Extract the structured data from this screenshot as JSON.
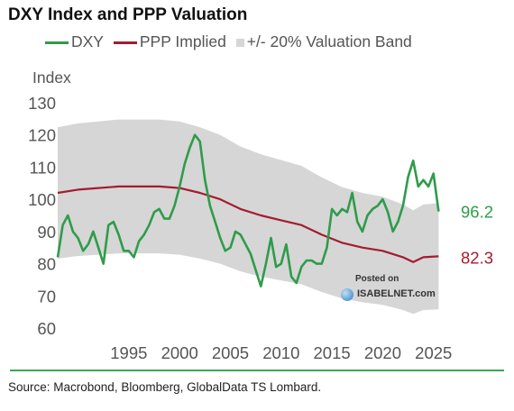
{
  "header": {
    "title": "DXY Index and PPP Valuation",
    "legend": {
      "dxy_label": "DXY",
      "ppp_label": "PPP Implied",
      "band_label": "+/- 20% Valuation Band"
    },
    "y_axis_label": "Index"
  },
  "watermark": {
    "posted_label": "Posted on",
    "site_label": "ISABELNET.com"
  },
  "footer": {
    "source": "Source: Macrobond, Bloomberg, GlobalData TS Lombard."
  },
  "chart_data": {
    "type": "line",
    "title": "DXY Index and PPP Valuation",
    "ylabel": "Index",
    "xlim": [
      1988,
      2026
    ],
    "ylim": [
      60,
      130
    ],
    "y_ticks": [
      "60",
      "70",
      "80",
      "90",
      "100",
      "110",
      "120",
      "130"
    ],
    "x_ticks": [
      "1995",
      "2000",
      "2005",
      "2010",
      "2015",
      "2020",
      "2025"
    ],
    "colors": {
      "dxy": "#2e9c4a",
      "ppp": "#a31c2f",
      "band": "#d6d6d6"
    },
    "series": [
      {
        "name": "DXY",
        "x": [
          1988.0,
          1988.5,
          1989.0,
          1989.5,
          1990.0,
          1990.5,
          1991.0,
          1991.5,
          1992.0,
          1992.5,
          1993.0,
          1993.5,
          1994.0,
          1994.5,
          1995.0,
          1995.5,
          1996.0,
          1996.5,
          1997.0,
          1997.5,
          1998.0,
          1998.5,
          1999.0,
          1999.5,
          2000.0,
          2000.5,
          2001.0,
          2001.5,
          2002.0,
          2002.5,
          2003.0,
          2003.5,
          2004.0,
          2004.5,
          2005.0,
          2005.5,
          2006.0,
          2006.5,
          2007.0,
          2007.5,
          2008.0,
          2008.5,
          2009.0,
          2009.5,
          2010.0,
          2010.5,
          2011.0,
          2011.5,
          2012.0,
          2012.5,
          2013.0,
          2013.5,
          2014.0,
          2014.5,
          2015.0,
          2015.5,
          2016.0,
          2016.5,
          2017.0,
          2017.5,
          2018.0,
          2018.5,
          2019.0,
          2019.5,
          2020.0,
          2020.5,
          2021.0,
          2021.5,
          2022.0,
          2022.5,
          2023.0,
          2023.5,
          2024.0,
          2024.5,
          2025.0,
          2025.5
        ],
        "values": [
          82,
          92,
          95,
          90,
          88,
          84,
          86,
          90,
          85,
          80,
          92,
          93,
          89,
          84,
          84,
          82,
          87,
          89,
          92,
          96,
          97,
          94,
          94,
          98,
          104,
          111,
          116,
          120,
          118,
          106,
          98,
          93,
          88,
          84,
          85,
          90,
          89,
          86,
          83,
          78,
          73,
          80,
          88,
          79,
          80,
          86,
          76,
          74,
          79,
          81,
          81,
          80,
          80,
          85,
          97,
          95,
          97,
          96,
          102,
          93,
          90,
          95,
          97,
          98,
          100,
          96,
          90,
          93,
          98,
          107,
          112,
          104,
          106,
          104,
          108,
          96.2
        ]
      },
      {
        "name": "PPP Implied",
        "x": [
          1988,
          1990,
          1992,
          1994,
          1996,
          1998,
          2000,
          2002,
          2004,
          2006,
          2008,
          2010,
          2012,
          2014,
          2016,
          2018,
          2020,
          2022,
          2023,
          2024,
          2025.5
        ],
        "values": [
          102,
          103,
          103.5,
          104,
          104,
          104,
          103.5,
          102,
          100,
          97,
          95,
          93.5,
          92,
          89,
          86.5,
          85,
          84,
          82,
          80.5,
          82,
          82.3
        ]
      },
      {
        "name": "+/- 20% Valuation Band",
        "x": [
          1988,
          1990,
          1992,
          1994,
          1996,
          1998,
          2000,
          2002,
          2004,
          2006,
          2008,
          2010,
          2012,
          2014,
          2016,
          2018,
          2020,
          2022,
          2023,
          2024,
          2025.5
        ],
        "upper": [
          122.4,
          123.6,
          124.2,
          124.8,
          124.8,
          124.8,
          124.2,
          122.4,
          120.0,
          116.4,
          114.0,
          112.2,
          110.4,
          106.8,
          103.8,
          102.0,
          100.8,
          98.4,
          96.6,
          98.4,
          98.8
        ],
        "lower": [
          81.6,
          82.4,
          82.8,
          83.2,
          83.2,
          83.2,
          82.8,
          81.6,
          80.0,
          77.6,
          76.0,
          74.8,
          73.6,
          71.2,
          69.2,
          68.0,
          67.2,
          65.6,
          64.4,
          65.6,
          65.8
        ]
      }
    ],
    "end_labels": {
      "dxy": "96.2",
      "ppp": "82.3"
    }
  }
}
